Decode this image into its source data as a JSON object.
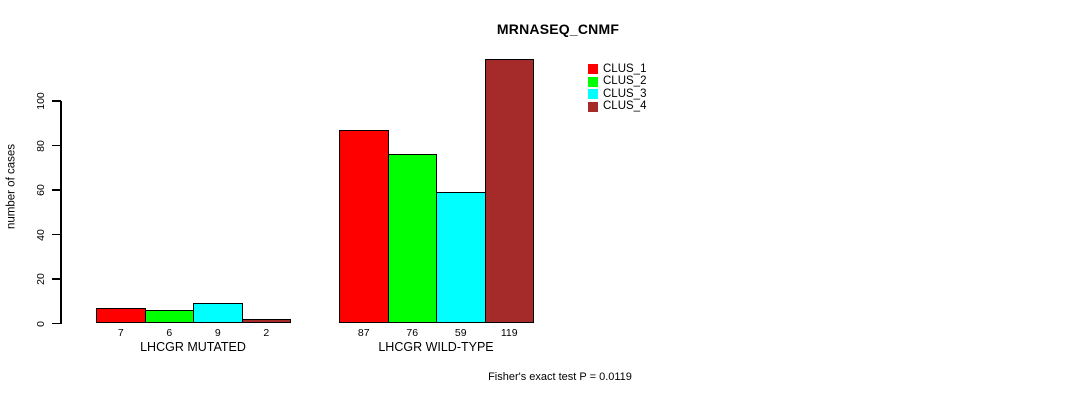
{
  "chart_data": {
    "type": "bar",
    "title": "MRNASEQ_CNMF",
    "ylabel": "number of cases",
    "xlabel": "",
    "yticks": [
      0,
      20,
      40,
      60,
      80,
      100
    ],
    "ylim": [
      0,
      100
    ],
    "grid": false,
    "legend_position": "top-right",
    "series": [
      {
        "name": "CLUS_1",
        "color": "#ff0000"
      },
      {
        "name": "CLUS_2",
        "color": "#00ff00"
      },
      {
        "name": "CLUS_3",
        "color": "#00ffff"
      },
      {
        "name": "CLUS_4",
        "color": "#a52a2a"
      }
    ],
    "groups": [
      {
        "label": "LHCGR MUTATED",
        "values": [
          7,
          6,
          9,
          2
        ]
      },
      {
        "label": "LHCGR WILD-TYPE",
        "values": [
          87,
          76,
          59,
          119
        ]
      }
    ],
    "bar_value_labels": [
      "7",
      "6",
      "9",
      "2",
      "87",
      "76",
      "59",
      "119"
    ],
    "footnote": "Fisher's exact test P = 0.0119"
  }
}
